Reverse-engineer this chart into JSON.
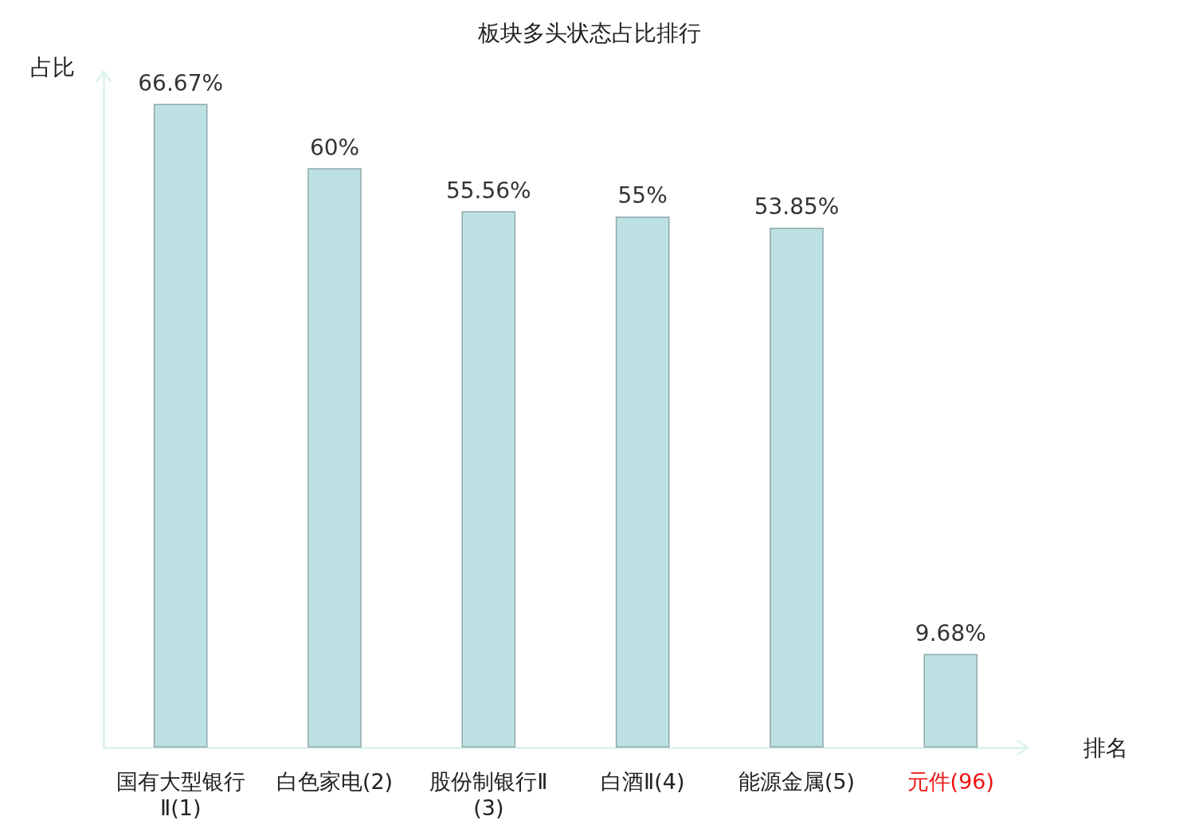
{
  "chart_data": {
    "type": "bar",
    "title": "板块多头状态占比排行",
    "xlabel": "排名",
    "ylabel": "占比",
    "categories": [
      "国有大型银行Ⅱ(1)",
      "白色家电(2)",
      "股份制银行Ⅱ(3)",
      "白酒Ⅱ(4)",
      "能源金属(5)",
      "元件(96)"
    ],
    "values": [
      66.67,
      60,
      55.56,
      55,
      53.85,
      9.68
    ],
    "value_labels": [
      "66.67%",
      "60%",
      "55.56%",
      "55%",
      "53.85%",
      "9.68%"
    ],
    "color": "#bde0e3",
    "ylim": [
      0,
      70
    ],
    "grid": false
  }
}
